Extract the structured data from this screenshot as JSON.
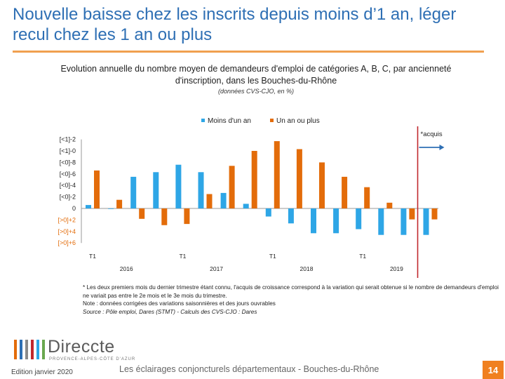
{
  "slide_title": "Nouvelle baisse chez les inscrits depuis moins d’1 an, léger recul chez les 1 an ou plus",
  "chart_title": "Evolution annuelle du nombre moyen de demandeurs d'emploi de catégories A, B, C, par ancienneté d'inscription, dans les Bouches-du-Rhône",
  "chart_subtitle": "(données CVS-CJO, en %)",
  "colors": {
    "series_1": "#2ea6e6",
    "series_2": "#e36c0a",
    "marker_line": "#c0282d",
    "arrow": "#2e6fb4",
    "accent": "#f08020"
  },
  "chart_data": {
    "type": "bar",
    "title": "Evolution annuelle du nombre moyen de demandeurs d'emploi de catégories A, B, C, par ancienneté d'inscription, dans les Bouches-du-Rhône",
    "subtitle": "(données CVS-CJO, en %)",
    "ylim": [
      -6,
      12
    ],
    "y_tick_labels": [
      "[<1]-2",
      "[<1]-0",
      "[<0]-8",
      "[<0]-6",
      "[<0]-4",
      "[<0]-2",
      "0",
      "[>0]+2",
      "[>0]+4",
      "[>0]+6"
    ],
    "y_tick_label_values": [
      12,
      10,
      8,
      6,
      4,
      2,
      0,
      -2,
      -4,
      -6
    ],
    "categories": [
      "T1 2016",
      "T2 2016",
      "T3 2016",
      "T4 2016",
      "T1 2017",
      "T2 2017",
      "T3 2017",
      "T4 2017",
      "T1 2018",
      "T2 2018",
      "T3 2018",
      "T4 2018",
      "T1 2019",
      "T2 2019",
      "T3 2019",
      "acquis"
    ],
    "x_quarter_labels": [
      "T1",
      "T1",
      "T1",
      "T1"
    ],
    "x_year_labels": [
      "2016",
      "2017",
      "2018",
      "2019"
    ],
    "series": [
      {
        "name": "Moins d'un an",
        "values": [
          0.6,
          -0.1,
          5.5,
          6.3,
          7.6,
          6.3,
          2.7,
          0.8,
          -1.4,
          -2.6,
          -4.3,
          -4.3,
          -3.6,
          -4.6,
          -4.6,
          -4.6
        ]
      },
      {
        "name": "Un an ou plus",
        "values": [
          6.6,
          1.5,
          -1.8,
          -2.9,
          -2.7,
          2.5,
          7.4,
          10.0,
          11.7,
          10.3,
          8.0,
          5.5,
          3.7,
          1.0,
          -1.9,
          -1.9
        ]
      }
    ],
    "annotation": "acquis",
    "legend": "top-center",
    "grid": false
  },
  "footnote": "* Les deux premiers mois du dernier trimestre étant connu, l'acquis de croissance correspond à la variation qui serait obtenue si le nombre de demandeurs d'emploi ne variait pas entre le 2e mois et le 3e mois du trimestre.",
  "note": "Note : données corrigées des variations saisonnières et des jours ouvrables",
  "source": "Source : Pôle emploi, Dares (STMT) - Calculs des CVS-CJO : Dares",
  "footer": {
    "logo_text": "Direccte",
    "logo_tagline": "PROVENCE-ALPES-CÔTE D'AZUR",
    "edition": "Edition janvier 2020",
    "publication": "Les éclairages conjoncturels départementaux - Bouches-du-Rhône",
    "page_number": "14"
  }
}
